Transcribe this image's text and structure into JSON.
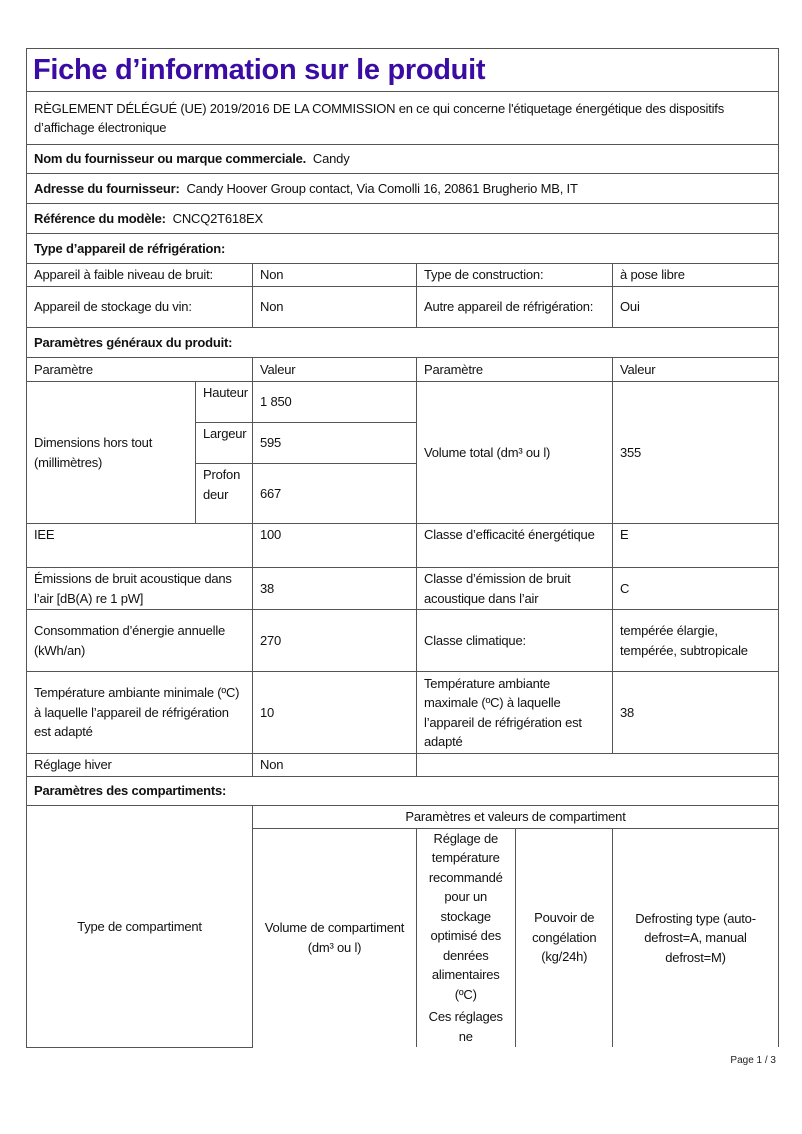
{
  "title": "Fiche d’information sur le produit",
  "regulation": "RÈGLEMENT DÉLÉGUÉ (UE) 2019/2016 DE LA COMMISSION en ce qui concerne l'étiquetage énergétique des dispositifs d’affichage électronique",
  "supplier": {
    "label": "Nom du fournisseur ou marque commerciale.",
    "value": "Candy"
  },
  "address": {
    "label": "Adresse du fournisseur:",
    "value": "Candy Hoover Group contact, Via Comolli 16, 20861 Brugherio MB, IT"
  },
  "model": {
    "label": "Référence du modèle:",
    "value": "CNCQ2T618EX"
  },
  "appliance_type": {
    "heading": "Type d’appareil de réfrigération:",
    "rows": [
      [
        "Appareil à faible niveau de bruit:",
        "Non",
        "Type de construction:",
        "à pose libre"
      ],
      [
        "Appareil de stockage du vin:",
        "Non",
        "Autre appareil de réfrigération:",
        "Oui"
      ]
    ]
  },
  "general": {
    "heading": "Paramètres généraux du produit:",
    "headers": [
      "Paramètre",
      "Valeur",
      "Paramètre",
      "Valeur"
    ],
    "dimensions": {
      "label": "Dimensions hors tout (millimètres)",
      "items": [
        [
          "Hauteur",
          "1 850"
        ],
        [
          "Largeur",
          "595"
        ],
        [
          "Profondeur",
          "667"
        ]
      ],
      "volume_label": "Volume total (dm³ ou l)",
      "volume_value": "355"
    },
    "rows": [
      [
        "IEE",
        "100",
        "Classe d’efficacité énergétique",
        "E"
      ],
      [
        "Émissions de bruit acoustique dans l’air [dB(A) re 1 pW]",
        "38",
        "Classe d’émission de bruit acoustique dans l’air",
        "C"
      ],
      [
        "Consommation d’énergie annuelle (kWh/an)",
        "270",
        "Classe climatique:",
        "tempérée élargie, tempérée, subtropicale"
      ],
      [
        "Température ambiante minimale (ºC) à laquelle l’appareil de réfrigération est adapté",
        "10",
        "Température ambiante maximale (ºC) à laquelle l’appareil de réfrigération est adapté",
        "38"
      ]
    ],
    "winter": [
      "Réglage hiver",
      "Non"
    ]
  },
  "compartments": {
    "heading": "Paramètres des compartiments:",
    "type_label": "Type de compartiment",
    "group_label": "Paramètres et valeurs de compartiment",
    "columns": [
      "Volume de compartiment (dm³ ou l)",
      "Réglage de température recommandé pour un stockage optimisé des denrées alimentaires (ºC)",
      "Pouvoir de congélation (kg/24h)",
      "Defrosting type (auto-defrost=A, manual defrost=M)"
    ],
    "column2_note": "Ces réglages ne"
  },
  "footer": {
    "page": "Page 1 / 3"
  }
}
